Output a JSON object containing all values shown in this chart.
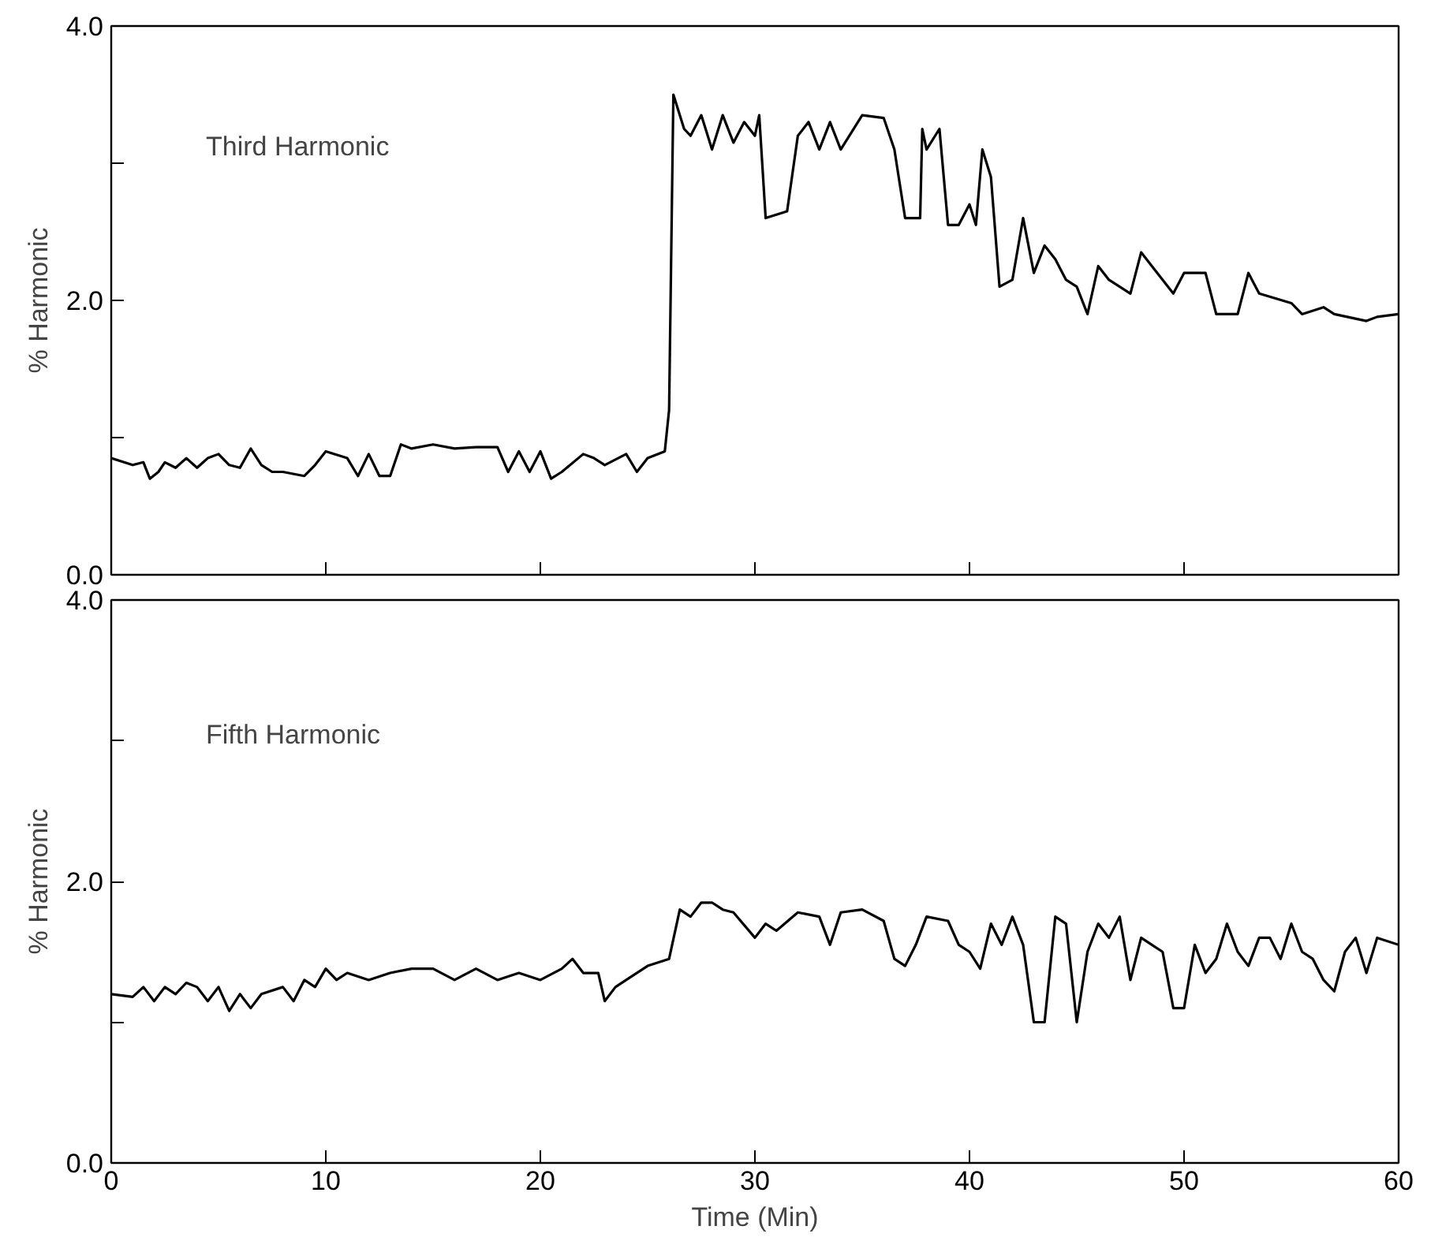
{
  "chart_data": [
    {
      "type": "line",
      "ylabel": "% Harmonic",
      "annotations": [
        "Third Harmonic"
      ],
      "tick_labels": "y",
      "grid": false,
      "marker": "none",
      "line_style": "solid",
      "xlim": [
        0,
        60
      ],
      "xticks": [
        {
          "value": 0,
          "label": null
        },
        {
          "value": 10,
          "label": null
        },
        {
          "value": 20,
          "label": null
        },
        {
          "value": 30,
          "label": null
        },
        {
          "value": 40,
          "label": null
        },
        {
          "value": 50,
          "label": null
        },
        {
          "value": 60,
          "label": null
        }
      ],
      "ylim": [
        0,
        4
      ],
      "yticks": [
        {
          "value": 0,
          "label": "0.0"
        },
        {
          "value": 1,
          "label": null
        },
        {
          "value": 2,
          "label": "2.0"
        },
        {
          "value": 3,
          "label": null
        },
        {
          "value": 4,
          "label": "4.0"
        }
      ],
      "series": [
        {
          "color": "#000000",
          "x": [
            0,
            1,
            1.5,
            1.8,
            2.2,
            2.5,
            3,
            3.5,
            4,
            4.5,
            5,
            5.5,
            6,
            6.5,
            7,
            7.5,
            8,
            9,
            9.5,
            10,
            11,
            11.5,
            12,
            12.5,
            13,
            13.5,
            14,
            15,
            16,
            17,
            18,
            18.5,
            19,
            19.5,
            20,
            20.5,
            21,
            22,
            22.5,
            23,
            24,
            24.5,
            25,
            25.8,
            26,
            26.2,
            26.7,
            27,
            27.5,
            28,
            28.5,
            29,
            29.5,
            30,
            30.2,
            30.5,
            31.5,
            32,
            32.5,
            33,
            33.5,
            34,
            35,
            36,
            36.5,
            37,
            37.7,
            37.8,
            38,
            38.6,
            39,
            39.5,
            40,
            40.3,
            40.6,
            41,
            41.4,
            42,
            42.5,
            43,
            43.5,
            44,
            44.5,
            45,
            45.5,
            46,
            46.5,
            47.5,
            48,
            48.5,
            49.5,
            50,
            51,
            51.5,
            52.5,
            53,
            53.5,
            55,
            55.5,
            56.5,
            57,
            58.5,
            59,
            60
          ],
          "values": [
            0.85,
            0.8,
            0.82,
            0.7,
            0.75,
            0.82,
            0.78,
            0.85,
            0.78,
            0.85,
            0.88,
            0.8,
            0.78,
            0.92,
            0.8,
            0.75,
            0.75,
            0.72,
            0.8,
            0.9,
            0.85,
            0.72,
            0.88,
            0.72,
            0.72,
            0.95,
            0.92,
            0.95,
            0.92,
            0.93,
            0.93,
            0.75,
            0.9,
            0.75,
            0.9,
            0.7,
            0.75,
            0.88,
            0.85,
            0.8,
            0.88,
            0.75,
            0.85,
            0.9,
            1.2,
            3.5,
            3.25,
            3.2,
            3.35,
            3.1,
            3.35,
            3.15,
            3.3,
            3.2,
            3.35,
            2.6,
            2.65,
            3.2,
            3.3,
            3.1,
            3.3,
            3.1,
            3.35,
            3.33,
            3.1,
            2.6,
            2.6,
            3.25,
            3.1,
            3.25,
            2.55,
            2.55,
            2.7,
            2.55,
            3.1,
            2.9,
            2.1,
            2.15,
            2.6,
            2.2,
            2.4,
            2.3,
            2.15,
            2.1,
            1.9,
            2.25,
            2.15,
            2.05,
            2.35,
            2.25,
            2.05,
            2.2,
            2.2,
            1.9,
            1.9,
            2.2,
            2.05,
            1.98,
            1.9,
            1.95,
            1.9,
            1.85,
            1.88,
            1.9
          ]
        }
      ]
    },
    {
      "type": "line",
      "ylabel": "% Harmonic",
      "xlabel": "Time (Min)",
      "annotations": [
        "Fifth Harmonic"
      ],
      "grid": false,
      "marker": "none",
      "line_style": "solid",
      "xlim": [
        0,
        60
      ],
      "xticks": [
        0,
        10,
        20,
        30,
        40,
        50,
        60
      ],
      "ylim": [
        0,
        4
      ],
      "yticks": [
        {
          "value": 0,
          "label": "0.0"
        },
        {
          "value": 1,
          "label": null
        },
        {
          "value": 2,
          "label": "2.0"
        },
        {
          "value": 3,
          "label": null
        },
        {
          "value": 4,
          "label": "4.0"
        }
      ],
      "series": [
        {
          "color": "#000000",
          "x": [
            0,
            1,
            1.5,
            2,
            2.5,
            3,
            3.5,
            4,
            4.5,
            5,
            5.5,
            6,
            6.5,
            7,
            8,
            8.5,
            9,
            9.5,
            10,
            10.5,
            11,
            12,
            13,
            14,
            15,
            16,
            17,
            18,
            19,
            20,
            21,
            21.5,
            22,
            22.7,
            23,
            23.5,
            24,
            25,
            26,
            26.5,
            27,
            27.5,
            28,
            28.5,
            29,
            30,
            30.5,
            31,
            32,
            33,
            33.5,
            34,
            35,
            36,
            36.5,
            37,
            37.5,
            38,
            39,
            39.5,
            40,
            40.5,
            41,
            41.5,
            42,
            42.5,
            43,
            43.5,
            44,
            44.5,
            45,
            45.5,
            46,
            46.5,
            47,
            47.5,
            48,
            48.5,
            49,
            49.5,
            50,
            50.5,
            51,
            51.5,
            52,
            52.5,
            53,
            53.5,
            54,
            54.5,
            55,
            55.5,
            56,
            56.5,
            57,
            57.5,
            58,
            58.5,
            59,
            60
          ],
          "values": [
            1.2,
            1.18,
            1.25,
            1.15,
            1.25,
            1.2,
            1.28,
            1.25,
            1.15,
            1.25,
            1.08,
            1.2,
            1.1,
            1.2,
            1.25,
            1.15,
            1.3,
            1.25,
            1.38,
            1.3,
            1.35,
            1.3,
            1.35,
            1.38,
            1.38,
            1.3,
            1.38,
            1.3,
            1.35,
            1.3,
            1.38,
            1.45,
            1.35,
            1.35,
            1.15,
            1.25,
            1.3,
            1.4,
            1.45,
            1.8,
            1.75,
            1.85,
            1.85,
            1.8,
            1.78,
            1.6,
            1.7,
            1.65,
            1.78,
            1.75,
            1.55,
            1.78,
            1.8,
            1.72,
            1.45,
            1.4,
            1.55,
            1.75,
            1.72,
            1.55,
            1.5,
            1.38,
            1.7,
            1.55,
            1.75,
            1.55,
            1.0,
            1.0,
            1.75,
            1.7,
            1.0,
            1.5,
            1.7,
            1.6,
            1.75,
            1.3,
            1.6,
            1.55,
            1.5,
            1.1,
            1.1,
            1.55,
            1.35,
            1.45,
            1.7,
            1.5,
            1.4,
            1.6,
            1.6,
            1.45,
            1.7,
            1.5,
            1.45,
            1.3,
            1.22,
            1.5,
            1.6,
            1.35,
            1.6,
            1.55
          ]
        }
      ]
    }
  ]
}
